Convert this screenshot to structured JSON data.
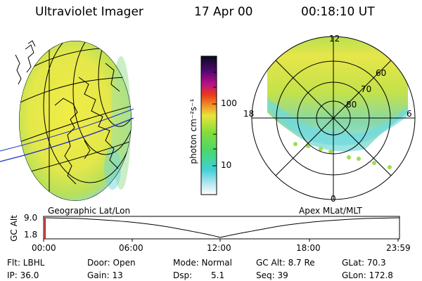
{
  "header": {
    "title": "Ultraviolet Imager",
    "date": "17 Apr 00",
    "time": "00:18:10 UT"
  },
  "colorbar": {
    "label": "photon cm⁻²s⁻¹",
    "tick_100": "100",
    "tick_10": "10"
  },
  "polar": {
    "mlt_top": "12",
    "mlt_left": "18",
    "mlt_right": "6",
    "mlt_bottom": "0",
    "lat_60": "60",
    "lat_70": "70",
    "lat_80": "80"
  },
  "panel_labels": {
    "left": "Geographic Lat/Lon",
    "right": "Apex MLat/MLT"
  },
  "timeline": {
    "axis_label": "GC Alt",
    "y_top": "9.0",
    "y_bottom": "1.8",
    "ticks": [
      "00:00",
      "06:00",
      "12:00",
      "18:00",
      "23:59"
    ]
  },
  "info": {
    "flt": "Flt: LBHL",
    "ip": "IP: 36.0",
    "door": "Door: Open",
    "gain": "Gain: 13",
    "mode": "Mode: Normal",
    "dsp_label": "Dsp:",
    "dsp_value": "5.1",
    "gcalt": "GC Alt: 8.7 Re",
    "seq": "Seq: 39",
    "glat": "GLat: 70.3",
    "glon": "GLon: 172.8"
  },
  "colors": {
    "fill_main": "#e8e84a",
    "fill_green": "#9ad63a",
    "fill_cyan": "#7fe0e6"
  }
}
